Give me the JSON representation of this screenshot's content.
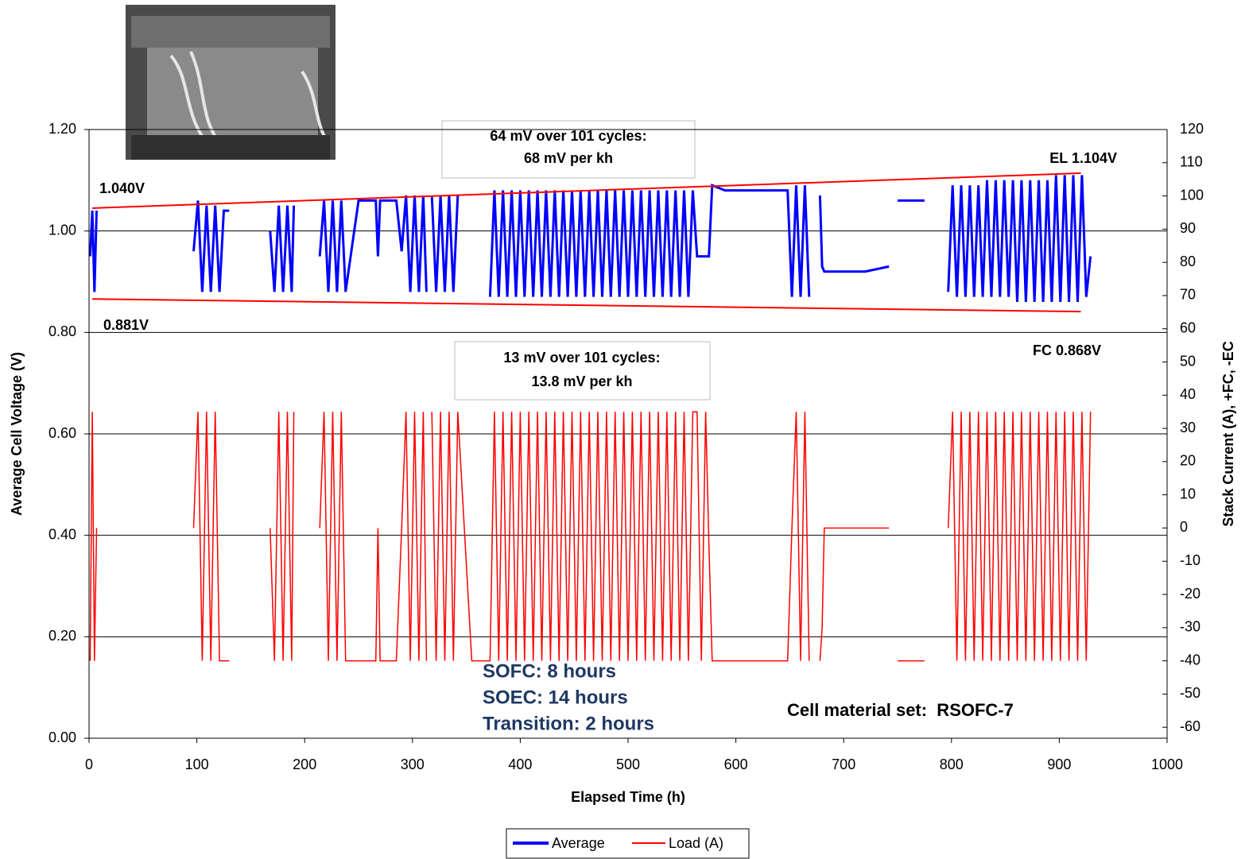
{
  "chart_data": {
    "type": "line",
    "x_label": "Elapsed Time (h)",
    "y_label": "Average Cell Voltage (V)",
    "y2_label": "Stack Current (A), +FC, -EC",
    "xlim": [
      0,
      1000
    ],
    "xticks": [
      0,
      100,
      200,
      300,
      400,
      500,
      600,
      700,
      800,
      900,
      1000
    ],
    "ylim": [
      0,
      1.2
    ],
    "yticks": [
      {
        "value": 0,
        "label": "0.00"
      },
      {
        "value": 0.2,
        "label": "0.20"
      },
      {
        "value": 0.4,
        "label": "0.40"
      },
      {
        "value": 0.6,
        "label": "0.60"
      },
      {
        "value": 0.8,
        "label": "0.80"
      },
      {
        "value": 1.0,
        "label": "1.00"
      },
      {
        "value": 1.2,
        "label": "1.20"
      }
    ],
    "y2lim": [
      -63.3,
      120
    ],
    "y2ticks": [
      -60,
      -50,
      -40,
      -30,
      -20,
      -10,
      0,
      10,
      20,
      30,
      40,
      50,
      60,
      70,
      80,
      90,
      100,
      110,
      120
    ],
    "grid": true,
    "legend": "bottom",
    "x": [
      1,
      3,
      5,
      7,
      8,
      97,
      101,
      105,
      109,
      113,
      117,
      121,
      125,
      130,
      135,
      168,
      172,
      176,
      180,
      184,
      188,
      190,
      200,
      214,
      218,
      222,
      226,
      230,
      234,
      238,
      250,
      266,
      268,
      270,
      272,
      285,
      290,
      294,
      298,
      302,
      306,
      310,
      313,
      316,
      318,
      322,
      326,
      330,
      334,
      338,
      342,
      355,
      368,
      372,
      376,
      380,
      384,
      388,
      392,
      396,
      400,
      404,
      408,
      412,
      416,
      420,
      424,
      428,
      432,
      436,
      440,
      444,
      448,
      452,
      456,
      460,
      464,
      468,
      472,
      476,
      480,
      484,
      488,
      492,
      496,
      500,
      504,
      508,
      512,
      516,
      520,
      524,
      528,
      532,
      536,
      540,
      544,
      548,
      552,
      556,
      560,
      564,
      568,
      572,
      575,
      578,
      590,
      620,
      648,
      652,
      656,
      660,
      664,
      668,
      674,
      678,
      680,
      682,
      700,
      720,
      742,
      746,
      750,
      775,
      785,
      797,
      801,
      805,
      809,
      813,
      817,
      821,
      825,
      829,
      833,
      837,
      841,
      845,
      849,
      853,
      857,
      861,
      865,
      869,
      873,
      877,
      881,
      885,
      889,
      893,
      897,
      901,
      905,
      909,
      913,
      917,
      921,
      925,
      929
    ],
    "series": [
      {
        "name": "Average",
        "color": "#0000ff",
        "axis": "y",
        "values": [
          0.95,
          1.04,
          0.88,
          1.04,
          null,
          0.96,
          1.06,
          0.88,
          1.05,
          0.88,
          1.05,
          0.88,
          1.04,
          1.04,
          null,
          1.0,
          0.88,
          1.05,
          0.88,
          1.05,
          0.88,
          1.05,
          null,
          0.95,
          1.06,
          0.88,
          1.06,
          0.88,
          1.06,
          0.88,
          1.06,
          1.06,
          0.95,
          1.06,
          1.06,
          1.06,
          0.96,
          1.07,
          0.88,
          1.07,
          0.88,
          1.07,
          0.88,
          null,
          1.07,
          0.88,
          1.07,
          0.88,
          1.07,
          0.88,
          1.07,
          null,
          null,
          0.87,
          1.08,
          0.87,
          1.08,
          0.87,
          1.08,
          0.87,
          1.08,
          0.87,
          1.08,
          0.87,
          1.08,
          0.87,
          1.08,
          0.87,
          1.08,
          0.87,
          1.08,
          0.87,
          1.08,
          0.87,
          1.08,
          0.87,
          1.08,
          0.87,
          1.08,
          0.87,
          1.08,
          0.87,
          1.08,
          0.87,
          1.08,
          0.87,
          1.08,
          0.87,
          1.08,
          0.87,
          1.08,
          0.87,
          1.08,
          0.87,
          1.08,
          0.87,
          1.08,
          0.87,
          1.08,
          0.87,
          1.08,
          0.95,
          0.95,
          0.95,
          0.95,
          1.09,
          1.08,
          1.08,
          1.08,
          0.87,
          1.09,
          0.87,
          1.09,
          0.87,
          null,
          1.07,
          0.93,
          0.92,
          0.92,
          0.92,
          0.93,
          null,
          1.06,
          1.06,
          null,
          0.88,
          1.09,
          0.87,
          1.09,
          0.87,
          1.09,
          0.87,
          1.09,
          0.87,
          1.1,
          0.87,
          1.1,
          0.87,
          1.1,
          0.87,
          1.1,
          0.86,
          1.1,
          0.86,
          1.1,
          0.86,
          1.1,
          0.86,
          1.1,
          0.86,
          1.11,
          0.86,
          1.11,
          0.86,
          1.11,
          0.86,
          1.11,
          0.87,
          0.95
        ]
      },
      {
        "name": "Load (A)",
        "color": "#ff0000",
        "axis": "y2",
        "values": [
          -40,
          35,
          -40,
          0,
          null,
          0,
          35,
          -40,
          35,
          -40,
          35,
          -40,
          -40,
          -40,
          null,
          0,
          -40,
          35,
          -40,
          35,
          -40,
          35,
          null,
          0,
          35,
          -40,
          35,
          -40,
          35,
          -40,
          -40,
          -40,
          0,
          -40,
          -40,
          -40,
          0,
          35,
          -40,
          35,
          -40,
          35,
          -40,
          null,
          35,
          -40,
          35,
          -40,
          35,
          -40,
          35,
          -40,
          -40,
          -40,
          35,
          -40,
          35,
          -40,
          35,
          -40,
          35,
          -40,
          35,
          -40,
          35,
          -40,
          35,
          -40,
          35,
          -40,
          35,
          -40,
          35,
          -40,
          35,
          -40,
          35,
          -40,
          35,
          -40,
          35,
          -40,
          35,
          -40,
          35,
          -40,
          35,
          -40,
          35,
          -40,
          35,
          -40,
          35,
          -40,
          35,
          -40,
          35,
          -40,
          35,
          -40,
          35,
          35,
          -40,
          35,
          -5,
          -40,
          -40,
          -40,
          -40,
          0,
          35,
          -40,
          35,
          -40,
          null,
          -40,
          -30,
          0,
          0,
          0,
          0,
          null,
          -40,
          -40,
          null,
          0,
          35,
          -40,
          35,
          -40,
          35,
          -40,
          35,
          -40,
          35,
          -40,
          35,
          -40,
          35,
          -40,
          35,
          -40,
          35,
          -40,
          35,
          -40,
          35,
          -40,
          35,
          -40,
          35,
          -40,
          35,
          -40,
          35,
          -40,
          35,
          -40,
          35
        ]
      }
    ],
    "trend_lines": {
      "color": "#ff0000",
      "lines": [
        {
          "x": [
            3,
            920
          ],
          "y": [
            1.045,
            1.114
          ]
        },
        {
          "x": [
            3,
            920
          ],
          "y": [
            0.866,
            0.841
          ]
        }
      ]
    },
    "annotations": {
      "upper_left": "1.040V",
      "lower_left": "0.881V",
      "upper_right": "EL 1.104V",
      "lower_right": "FC 0.868V",
      "box_1": [
        "64 mV over 101 cycles:",
        "68 mV per kh"
      ],
      "box_2": [
        "13 mV over 101 cycles:",
        "13.8 mV per kh"
      ],
      "schedule": [
        "SOFC: 8 hours",
        "SOEC: 14 hours",
        "Transition: 2 hours"
      ],
      "material": "Cell material set:  RSOFC-7"
    }
  }
}
